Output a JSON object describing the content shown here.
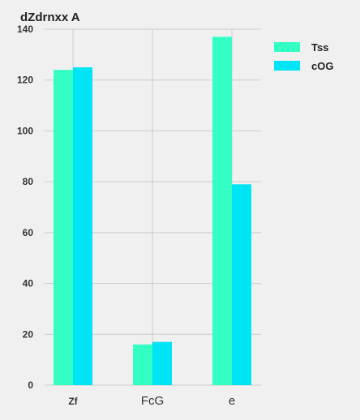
{
  "chart_data": {
    "type": "bar",
    "title": "dZdrnxx A",
    "xlabel": "",
    "ylabel": "",
    "categories": [
      "Zf",
      "FcG",
      "e"
    ],
    "series": [
      {
        "name": "Tss",
        "values": [
          124,
          16,
          137
        ],
        "color": "#33ffc4"
      },
      {
        "name": "cOG",
        "values": [
          125,
          17,
          79
        ],
        "color": "#00e5f5"
      }
    ],
    "ylim": [
      0,
      140
    ],
    "yticks": [
      0,
      20,
      40,
      60,
      80,
      100,
      120,
      140
    ],
    "grid": true,
    "legend": "top-right"
  }
}
